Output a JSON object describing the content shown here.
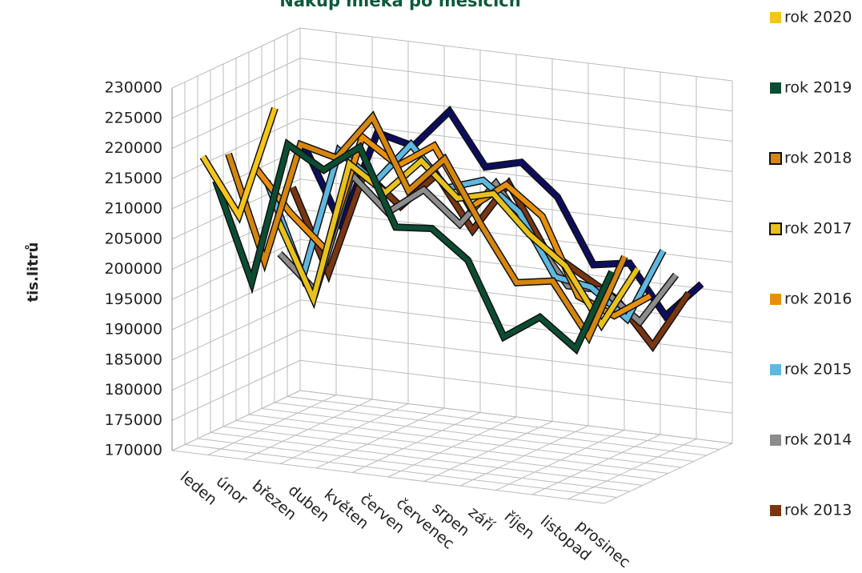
{
  "chart_data": {
    "type": "line3d",
    "title": "Nákup mléka po měsících",
    "y_label": "tis.litrů",
    "categories": [
      "leden",
      "únor",
      "březen",
      "duben",
      "květen",
      "červen",
      "červenec",
      "srpen",
      "září",
      "říjen",
      "listopad",
      "prosinec"
    ],
    "ylim": [
      170000,
      230000
    ],
    "yticks": [
      170000,
      175000,
      180000,
      185000,
      190000,
      195000,
      200000,
      205000,
      210000,
      215000,
      220000,
      225000,
      230000
    ],
    "grid": true,
    "legend": "right",
    "series": [
      {
        "name": "rok 2020",
        "color": "#f5c518",
        "values": [
          218000,
          209000,
          227500,
          null,
          null,
          null,
          null,
          null,
          null,
          null,
          null,
          null
        ]
      },
      {
        "name": "rok 2019",
        "color": "#0b4d32",
        "values": [
          213000,
          197000,
          220500,
          217000,
          221500,
          209000,
          209500,
          205000,
          193000,
          197000,
          192500,
          206000
        ]
      },
      {
        "name": "rok 2018",
        "color": "#d4860f",
        "values": [
          216500,
          199500,
          219500,
          218000,
          225500,
          214000,
          220000,
          210000,
          201000,
          202000,
          193500,
          207500
        ]
      },
      {
        "name": "rok 2017",
        "color": "#e8c21a",
        "values": [
          null,
          205500,
          193000,
          216000,
          212000,
          218000,
          212500,
          214000,
          208000,
          203500,
          194500,
          204500
        ]
      },
      {
        "name": "rok 2016",
        "color": "#e8900c",
        "values": [
          212500,
          205500,
          200000,
          219500,
          215500,
          219500,
          210000,
          214500,
          210000,
          197500,
          195000,
          199000
        ]
      },
      {
        "name": "rok 2015",
        "color": "#5fb8e0",
        "values": [
          209000,
          194000,
          215500,
          211000,
          218000,
          211500,
          213500,
          209000,
          199000,
          198000,
          193500,
          205500
        ]
      },
      {
        "name": "rok 2014",
        "color": "#8c8c8c",
        "values": [
          196000,
          190500,
          210500,
          205000,
          209500,
          204500,
          212000,
          204000,
          196500,
          196500,
          192000,
          200500
        ]
      },
      {
        "name": "rok 2013",
        "color": "#7a3610",
        "values": [
          206000,
          192500,
          210000,
          205000,
          211000,
          202500,
          211000,
          201000,
          197500,
          194000,
          187000,
          196500
        ]
      },
      {
        "name": null,
        "color": "#0d0d5e",
        "values": [
          211500,
          199500,
          215500,
          214000,
          220500,
          212000,
          213500,
          208500,
          198000,
          199000,
          191000,
          197000
        ]
      }
    ]
  }
}
